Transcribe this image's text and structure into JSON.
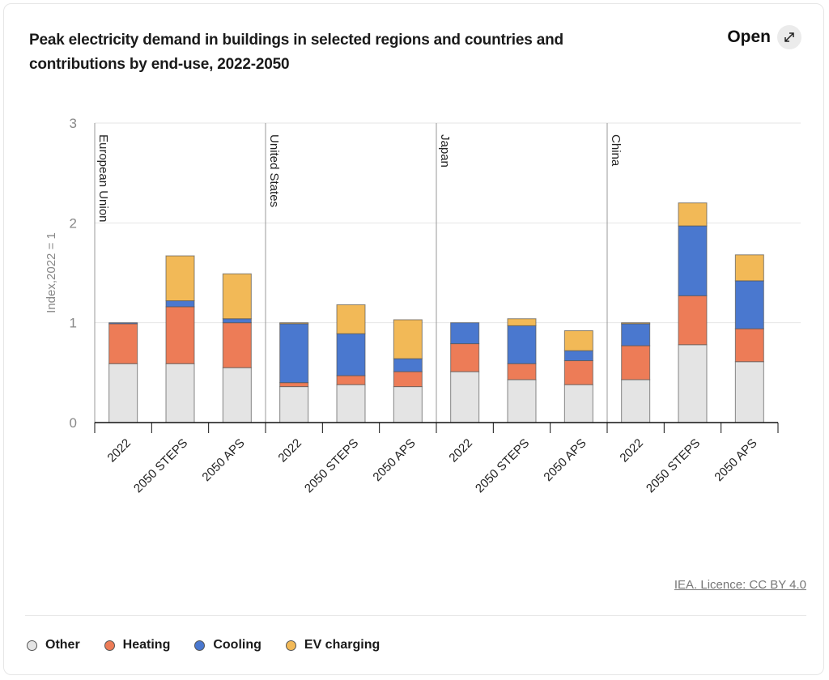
{
  "header": {
    "title": "Peak electricity demand in buildings in selected regions and countries and contributions by end-use, 2022-2050",
    "open_label": "Open",
    "open_icon": "expand-arrows-icon"
  },
  "credit": "IEA. Licence: CC BY 4.0",
  "chart_data": {
    "type": "bar",
    "stacked": true,
    "title": "Peak electricity demand in buildings in selected regions and countries and contributions by end-use, 2022-2050",
    "ylabel": "Index,2022 = 1",
    "xlabel": "",
    "ylim": [
      0,
      3
    ],
    "yticks": [
      "0",
      "1",
      "2",
      "3"
    ],
    "grid": true,
    "legend_position": "bottom-left",
    "groups": [
      {
        "name": "European Union",
        "categories": [
          "2022",
          "2050 STEPS",
          "2050 APS"
        ]
      },
      {
        "name": "United States",
        "categories": [
          "2022",
          "2050 STEPS",
          "2050 APS"
        ]
      },
      {
        "name": "Japan",
        "categories": [
          "2022",
          "2050 STEPS",
          "2050 APS"
        ]
      },
      {
        "name": "China",
        "categories": [
          "2022",
          "2050 STEPS",
          "2050 APS"
        ]
      }
    ],
    "categories": [
      "2022",
      "2050 STEPS",
      "2050 APS",
      "2022",
      "2050 STEPS",
      "2050 APS",
      "2022",
      "2050 STEPS",
      "2050 APS",
      "2022",
      "2050 STEPS",
      "2050 APS"
    ],
    "series": [
      {
        "name": "Other",
        "color": "#e4e4e4",
        "values": [
          0.59,
          0.59,
          0.55,
          0.36,
          0.38,
          0.36,
          0.51,
          0.43,
          0.38,
          0.43,
          0.78,
          0.61
        ]
      },
      {
        "name": "Heating",
        "color": "#ed7c57",
        "values": [
          0.4,
          0.57,
          0.45,
          0.04,
          0.09,
          0.15,
          0.28,
          0.16,
          0.24,
          0.34,
          0.49,
          0.33
        ]
      },
      {
        "name": "Cooling",
        "color": "#4a78cf",
        "values": [
          0.01,
          0.06,
          0.04,
          0.59,
          0.42,
          0.13,
          0.21,
          0.38,
          0.1,
          0.22,
          0.7,
          0.48
        ]
      },
      {
        "name": "EV charging",
        "color": "#f2b957",
        "values": [
          0.0,
          0.45,
          0.45,
          0.01,
          0.29,
          0.39,
          0.0,
          0.07,
          0.2,
          0.01,
          0.23,
          0.26
        ]
      }
    ]
  }
}
